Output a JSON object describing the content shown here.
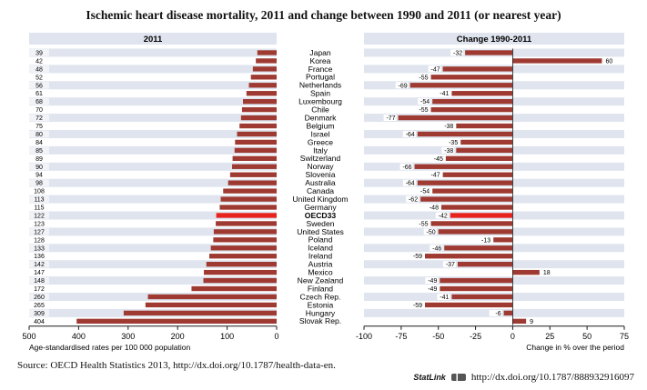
{
  "chart_data": {
    "type": "bar",
    "title": "Ischemic heart disease mortality, 2011 and change between 1990 and 2011 (or nearest year)",
    "countries": [
      "Japan",
      "Korea",
      "France",
      "Portugal",
      "Netherlands",
      "Spain",
      "Luxembourg",
      "Chile",
      "Denmark",
      "Belgium",
      "Israel",
      "Greece",
      "Italy",
      "Switzerland",
      "Norway",
      "Slovenia",
      "Australia",
      "Canada",
      "United Kingdom",
      "Germany",
      "OECD33",
      "Sweden",
      "United States",
      "Poland",
      "Iceland",
      "Ireland",
      "Austria",
      "Mexico",
      "New Zealand",
      "Finland",
      "Czech Rep.",
      "Estonia",
      "Hungary",
      "Slovak Rep."
    ],
    "highlight": "OECD33",
    "colors": {
      "bar": "#9e3a32",
      "highlight": "#e8231d",
      "band": "#dfe4ee",
      "axis": "#1a1a1a"
    },
    "left_panel": {
      "title": "2011",
      "values": [
        39,
        42,
        48,
        52,
        56,
        61,
        68,
        70,
        72,
        75,
        80,
        84,
        85,
        89,
        90,
        94,
        98,
        108,
        113,
        115,
        122,
        123,
        127,
        128,
        133,
        136,
        142,
        147,
        148,
        172,
        260,
        265,
        309,
        404
      ],
      "labels": [
        "39",
        "42",
        "48",
        "52",
        "56",
        "61",
        "68",
        "70",
        "72",
        "75",
        "80",
        "84",
        "85",
        "89",
        "90",
        "94",
        "98",
        "108",
        "113",
        "115",
        "122",
        "123",
        "127",
        "128",
        "133",
        "136",
        "142",
        "147",
        "148",
        "172",
        "260",
        "265",
        "309",
        "404"
      ],
      "xlim": [
        500,
        0
      ],
      "ticks": [
        "500",
        "400",
        "300",
        "200",
        "100",
        "0"
      ],
      "tick_values": [
        500,
        400,
        300,
        200,
        100,
        0
      ],
      "xlabel": "Age-standardised rates per 100 000 population"
    },
    "right_panel": {
      "title": "Change 1990-2011",
      "values": [
        -32,
        60,
        -47,
        -55,
        -69,
        -41,
        -54,
        -55,
        -77,
        -38,
        -64,
        -35,
        -38,
        -45,
        -66,
        -47,
        -64,
        -54,
        -62,
        -48,
        -42,
        -55,
        -50,
        -13,
        -46,
        -59,
        -37,
        18,
        -49,
        -49,
        -41,
        -59,
        -6,
        9
      ],
      "labels": [
        "-32",
        "60",
        "-47",
        "-55",
        "-69",
        "-41",
        "-54",
        "-55",
        "-77",
        "-38",
        "-64",
        "-35",
        "-38",
        "-45",
        "-66",
        "-47",
        "-64",
        "-54",
        "-62",
        "-48",
        "-42",
        "-55",
        "-50",
        "-13",
        "-46",
        "-59",
        "-37",
        "18",
        "-49",
        "-49",
        "-41",
        "-59",
        "-6",
        "9"
      ],
      "xlim": [
        -100,
        75
      ],
      "ticks": [
        "-100",
        "-75",
        "-50",
        "-25",
        "0",
        "25",
        "50",
        "75"
      ],
      "tick_values": [
        -100,
        -75,
        -50,
        -25,
        0,
        25,
        50,
        75
      ],
      "xlabel": "Change in % over the period"
    }
  },
  "footer": {
    "source": "Source:  OECD Health Statistics 2013, http://dx.doi.org/10.1787/health-data-en.",
    "statlink_label": "StatLink",
    "statlink_url": "http://dx.doi.org/10.1787/888932916097"
  }
}
